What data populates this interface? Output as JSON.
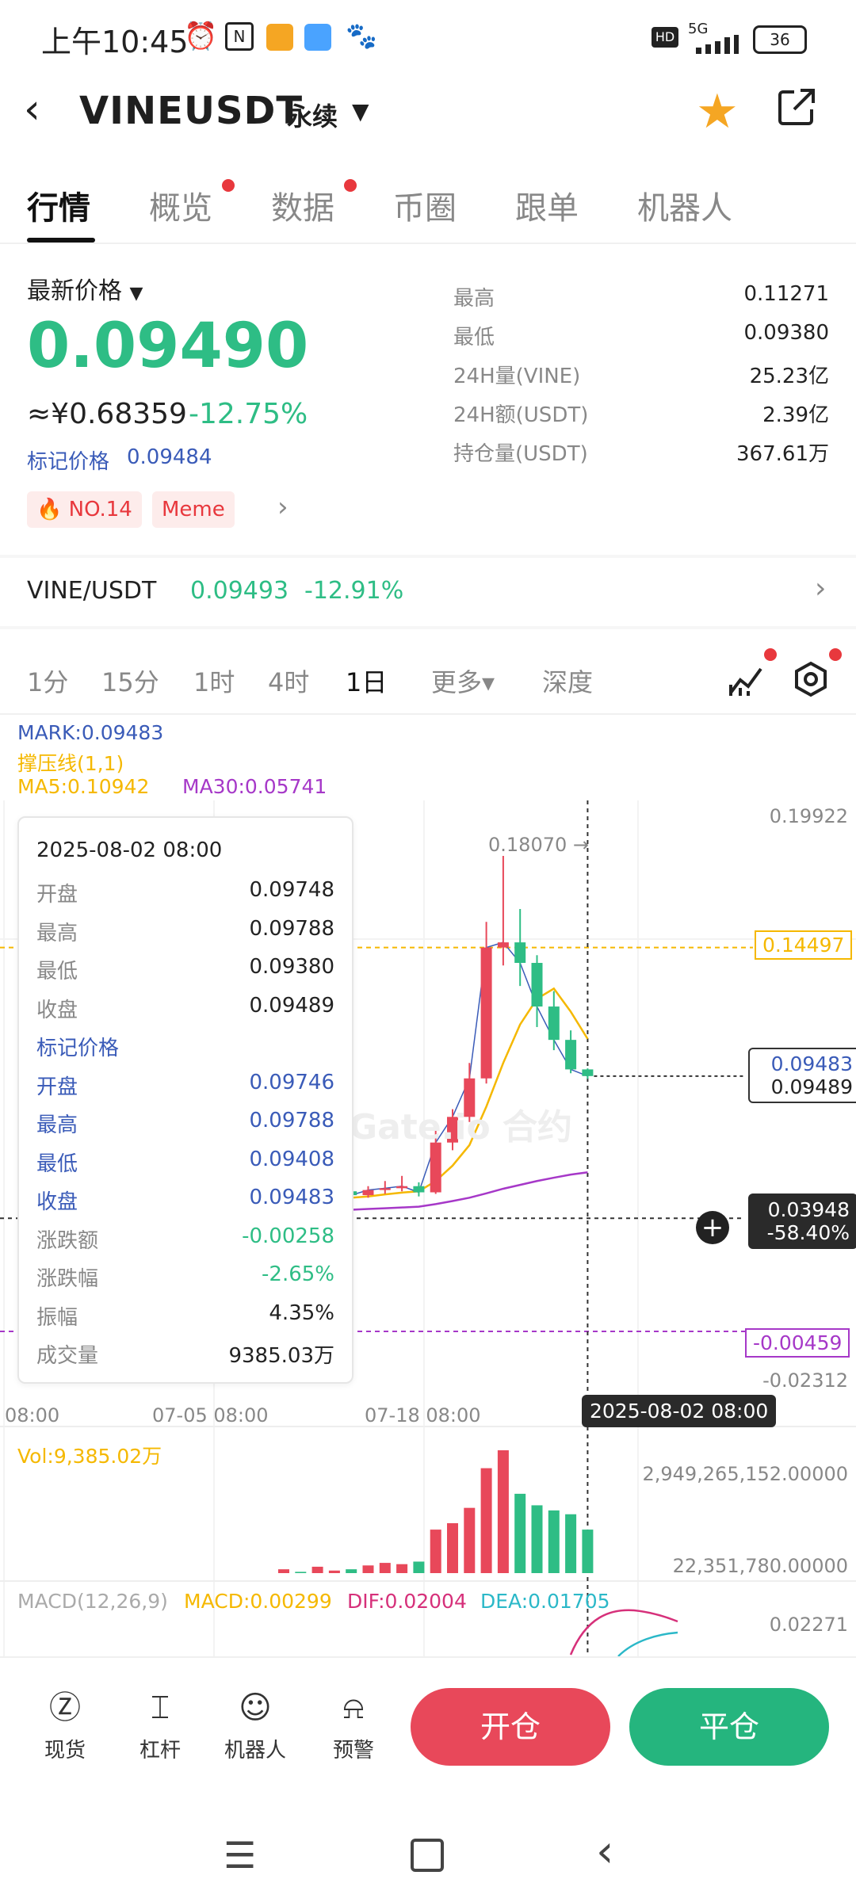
{
  "status_bar": {
    "time": "上午10:45",
    "battery": "36",
    "network": "5G"
  },
  "header": {
    "title": "VINEUSDT",
    "subtitle": "永续"
  },
  "tabs": [
    {
      "label": "行情",
      "active": true,
      "dot": false
    },
    {
      "label": "概览",
      "active": false,
      "dot": true
    },
    {
      "label": "数据",
      "active": false,
      "dot": true
    },
    {
      "label": "币圈",
      "active": false,
      "dot": false
    },
    {
      "label": "跟单",
      "active": false,
      "dot": false
    },
    {
      "label": "机器人",
      "active": false,
      "dot": false
    }
  ],
  "price": {
    "label": "最新价格",
    "last": "0.09490",
    "cny": "≈¥0.68359",
    "change_pct": "-12.75%",
    "mark_label": "标记价格",
    "mark_value": "0.09484",
    "tag_rank": "NO.14",
    "tag_meme": "Meme"
  },
  "stats": [
    {
      "label": "最高",
      "value": "0.11271"
    },
    {
      "label": "最低",
      "value": "0.09380"
    },
    {
      "label": "24H量(VINE)",
      "value": "25.23亿"
    },
    {
      "label": "24H额(USDT)",
      "value": "2.39亿"
    },
    {
      "label": "持仓量(USDT)",
      "value": "367.61万"
    }
  ],
  "pair": {
    "name": "VINE/USDT",
    "price": "0.09493",
    "change": "-12.91%"
  },
  "timeframes": [
    {
      "label": "1分",
      "active": false
    },
    {
      "label": "15分",
      "active": false
    },
    {
      "label": "1时",
      "active": false
    },
    {
      "label": "4时",
      "active": false
    },
    {
      "label": "1日",
      "active": true
    },
    {
      "label": "更多▾",
      "active": false
    },
    {
      "label": "深度",
      "active": false
    }
  ],
  "indicators": {
    "mark": "MARK:0.09483",
    "pressure": "撑压线(1,1)",
    "ma5": "MA5:0.10942",
    "ma30": "MA30:0.05741",
    "vol": "Vol:9,385.02万",
    "macd_params": "MACD(12,26,9)",
    "macd": "MACD:0.00299",
    "dif": "DIF:0.02004",
    "dea": "DEA:0.01705"
  },
  "tooltip": {
    "date": "2025-08-02 08:00",
    "rows": [
      {
        "k": "开盘",
        "v": "0.09748",
        "style": ""
      },
      {
        "k": "最高",
        "v": "0.09788",
        "style": ""
      },
      {
        "k": "最低",
        "v": "0.09380",
        "style": ""
      },
      {
        "k": "收盘",
        "v": "0.09489",
        "style": ""
      },
      {
        "k": "标记价格",
        "v": "",
        "style": "blue"
      },
      {
        "k": "开盘",
        "v": "0.09746",
        "style": "blue"
      },
      {
        "k": "最高",
        "v": "0.09788",
        "style": "blue"
      },
      {
        "k": "最低",
        "v": "0.09408",
        "style": "blue"
      },
      {
        "k": "收盘",
        "v": "0.09483",
        "style": "blue"
      },
      {
        "k": "涨跌额",
        "v": "-0.00258",
        "style": "green"
      },
      {
        "k": "涨跌幅",
        "v": "-2.65%",
        "style": "green"
      },
      {
        "k": "振幅",
        "v": "4.35%",
        "style": ""
      },
      {
        "k": "成交量",
        "v": "9385.03万",
        "style": ""
      }
    ]
  },
  "chart_labels": {
    "axis_top": "0.19922",
    "axis_bottom": "-0.02312",
    "max_marker": "0.18070 →",
    "line_orange": "0.14497",
    "mark_box": "0.09483",
    "last_box": "0.09489",
    "cross_price": "0.03948",
    "cross_pct": "-58.40%",
    "line_purple": "-0.00459",
    "x_ticks": [
      "08:00",
      "07-05 08:00",
      "07-18 08:00"
    ],
    "x_cursor": "2025-08-02 08:00",
    "vol_top": "2,949,265,152.00000",
    "vol_bottom": "22,351,780.00000",
    "macd_top": "0.02271",
    "watermark": "Gate.io 合约"
  },
  "colors": {
    "up": "#2ebd85",
    "down": "#e8485a",
    "ma5": "#f5b800",
    "ma30": "#a638c8",
    "mark": "#3a5bb8"
  },
  "chart_data": {
    "type": "candlestick",
    "candles": [
      {
        "o": 0.0455,
        "h": 0.047,
        "l": 0.044,
        "c": 0.0458
      },
      {
        "o": 0.0458,
        "h": 0.0475,
        "l": 0.0445,
        "c": 0.0452
      },
      {
        "o": 0.0452,
        "h": 0.048,
        "l": 0.0448,
        "c": 0.047
      },
      {
        "o": 0.047,
        "h": 0.051,
        "l": 0.046,
        "c": 0.05
      },
      {
        "o": 0.05,
        "h": 0.053,
        "l": 0.047,
        "c": 0.0485
      },
      {
        "o": 0.0485,
        "h": 0.052,
        "l": 0.0475,
        "c": 0.0505
      },
      {
        "o": 0.0505,
        "h": 0.054,
        "l": 0.049,
        "c": 0.0512
      },
      {
        "o": 0.0512,
        "h": 0.056,
        "l": 0.05,
        "c": 0.052
      },
      {
        "o": 0.052,
        "h": 0.0535,
        "l": 0.048,
        "c": 0.0496
      },
      {
        "o": 0.0496,
        "h": 0.075,
        "l": 0.049,
        "c": 0.069
      },
      {
        "o": 0.069,
        "h": 0.082,
        "l": 0.066,
        "c": 0.079
      },
      {
        "o": 0.079,
        "h": 0.1,
        "l": 0.077,
        "c": 0.094
      },
      {
        "o": 0.094,
        "h": 0.155,
        "l": 0.092,
        "c": 0.145
      },
      {
        "o": 0.145,
        "h": 0.1807,
        "l": 0.138,
        "c": 0.147
      },
      {
        "o": 0.147,
        "h": 0.16,
        "l": 0.13,
        "c": 0.139
      },
      {
        "o": 0.139,
        "h": 0.142,
        "l": 0.114,
        "c": 0.122
      },
      {
        "o": 0.122,
        "h": 0.128,
        "l": 0.105,
        "c": 0.109
      },
      {
        "o": 0.109,
        "h": 0.1127,
        "l": 0.096,
        "c": 0.0975
      },
      {
        "o": 0.0975,
        "h": 0.0979,
        "l": 0.0938,
        "c": 0.0949
      }
    ],
    "volumes": [
      0.3,
      0.1,
      0.5,
      0.2,
      0.3,
      0.6,
      0.8,
      0.7,
      0.9,
      3.4,
      3.9,
      5.1,
      8.2,
      9.6,
      6.2,
      5.3,
      4.9,
      4.6,
      3.4
    ],
    "ma5": [
      0.046,
      0.0462,
      0.0465,
      0.047,
      0.0475,
      0.048,
      0.0488,
      0.0495,
      0.05,
      0.054,
      0.06,
      0.068,
      0.083,
      0.1,
      0.115,
      0.125,
      0.129,
      0.12,
      0.1094
    ],
    "ma30": [
      0.042,
      0.0422,
      0.0424,
      0.0426,
      0.0428,
      0.0431,
      0.0434,
      0.0437,
      0.044,
      0.045,
      0.0462,
      0.0475,
      0.0492,
      0.051,
      0.0525,
      0.054,
      0.0553,
      0.0565,
      0.0574
    ],
    "ylim": [
      -0.02312,
      0.19922
    ]
  }
}
